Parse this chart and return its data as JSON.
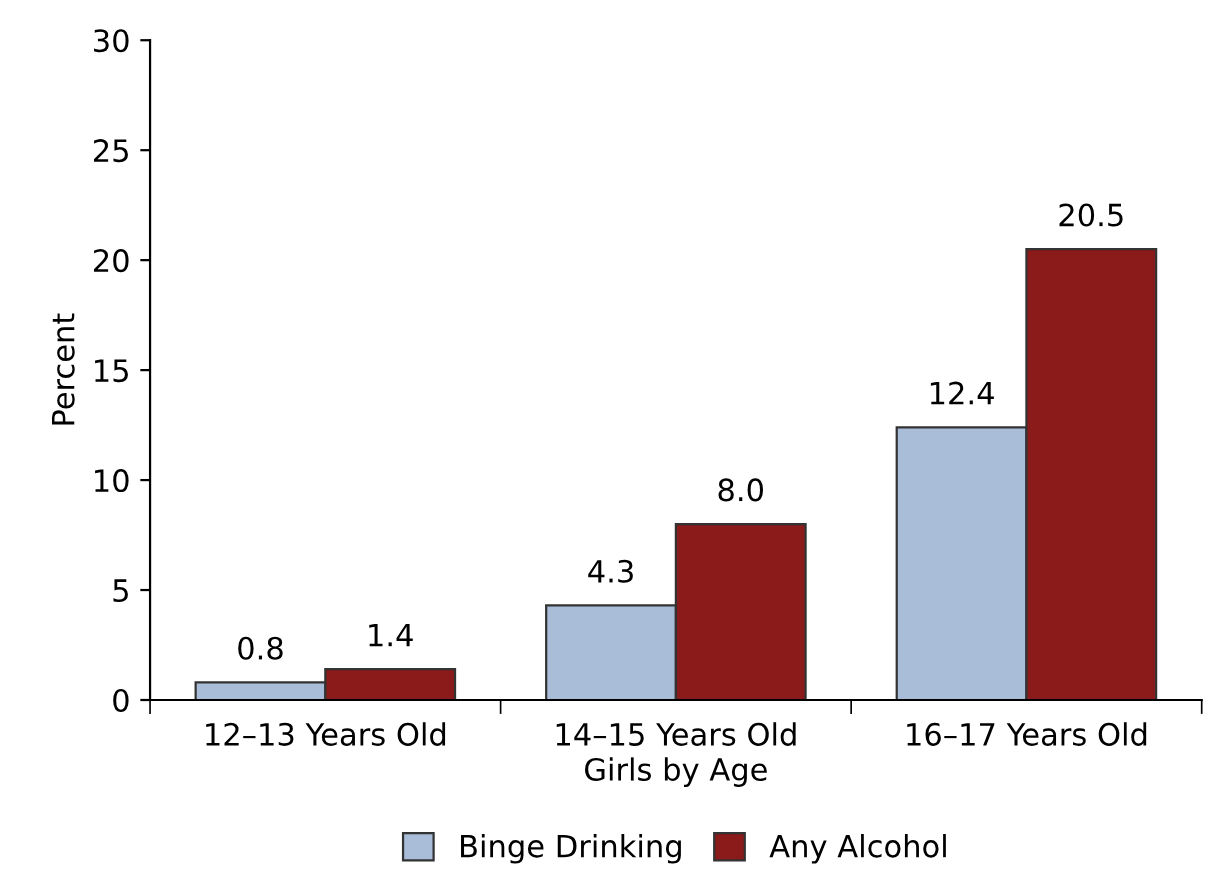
{
  "chart_data": {
    "type": "bar",
    "xlabel": "Girls by Age",
    "ylabel": "Percent",
    "categories": [
      "12–13 Years Old",
      "14–15 Years Old",
      "16–17 Years Old"
    ],
    "series": [
      {
        "name": "Binge Drinking",
        "color": "#a9bcd8",
        "values": [
          0.8,
          4.3,
          12.4
        ],
        "value_labels": [
          "0.8",
          "4.3",
          "12.4"
        ]
      },
      {
        "name": "Any Alcohol",
        "color": "#8b1a1a",
        "values": [
          1.4,
          8.0,
          20.5
        ],
        "value_labels": [
          "1.4",
          "8.0",
          "20.5"
        ]
      }
    ],
    "ylim": [
      0,
      30
    ],
    "yticks": [
      0,
      5,
      10,
      15,
      20,
      25,
      30
    ],
    "grid": false,
    "legend": "bottom"
  }
}
